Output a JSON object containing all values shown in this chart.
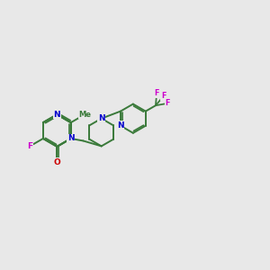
{
  "bg_color": "#e8e8e8",
  "bond_color": "#3a7a3a",
  "N_color": "#0000cc",
  "O_color": "#cc0000",
  "F_color": "#cc00cc",
  "linewidth": 1.4,
  "figsize": [
    3.0,
    3.0
  ],
  "dpi": 100,
  "xlim": [
    0,
    12
  ],
  "ylim": [
    0,
    10
  ]
}
